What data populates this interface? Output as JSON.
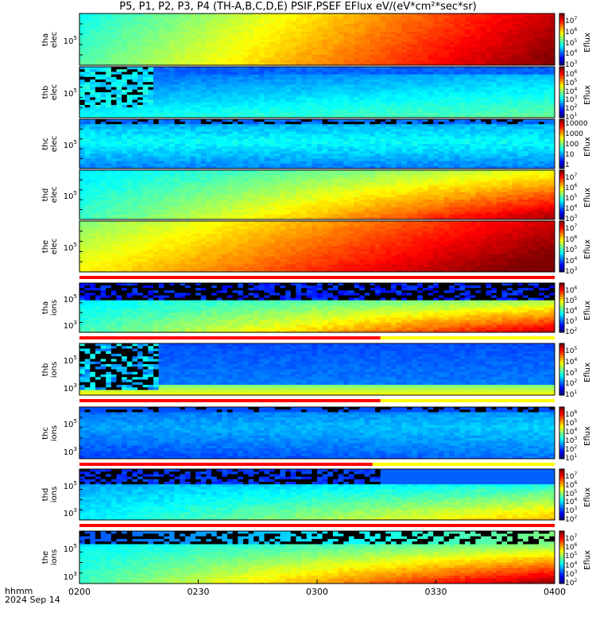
{
  "title": "P5, P1, P2, P3, P4 (TH-A,B,C,D,E) PSIF,PSEF EFlux eV/(eV*cm²*sec*sr)",
  "x_axis": {
    "label_line1": "hhmm",
    "label_line2": "2024 Sep 14",
    "ticks": [
      "0200",
      "0230",
      "0300",
      "0330",
      "0400"
    ]
  },
  "colorbar_label": "Eflux",
  "chart_data": [
    {
      "type": "heatmap",
      "probe": "tha",
      "species": "elec",
      "ylabel": [
        "tha",
        "elec"
      ],
      "ytick": "10^5",
      "cbar_ticks": [
        "10^7",
        "10^6",
        "10^5",
        "10^4",
        "10^3"
      ],
      "pattern": "smooth_rise"
    },
    {
      "type": "heatmap",
      "probe": "thb",
      "species": "elec",
      "ylabel": [
        "thb",
        "elec"
      ],
      "ytick": "10^5",
      "cbar_ticks": [
        "10^6",
        "10^5",
        "10^4",
        "10^3",
        "10^2",
        "10^1"
      ],
      "pattern": "noisy_early"
    },
    {
      "type": "heatmap",
      "probe": "thc",
      "species": "elec",
      "ylabel": [
        "thc",
        "elec"
      ],
      "ytick": "10^5",
      "cbar_ticks": [
        "10000",
        "1000",
        "100",
        "10",
        "1"
      ],
      "pattern": "blue_band"
    },
    {
      "type": "heatmap",
      "probe": "thd",
      "species": "elec",
      "ylabel": [
        "thd",
        "elec"
      ],
      "ytick": "10^5",
      "cbar_ticks": [
        "10^7",
        "10^6",
        "10^5",
        "10^4",
        "10^3"
      ],
      "pattern": "green_rise"
    },
    {
      "type": "heatmap",
      "probe": "the",
      "species": "elec",
      "ylabel": [
        "the",
        "elec"
      ],
      "ytick": "10^5",
      "cbar_ticks": [
        "10^7",
        "10^6",
        "10^5",
        "10^4",
        "10^3"
      ],
      "pattern": "hot"
    },
    {
      "type": "heatmap",
      "probe": "tha",
      "species": "ions",
      "ylabel": [
        "tha",
        "ions"
      ],
      "ytick_top": "10^5",
      "ytick_bot": "10^3",
      "cbar_ticks": [
        "10^6",
        "10^5",
        "10^4",
        "10^3",
        "10^2"
      ],
      "pattern": "ions_a"
    },
    {
      "type": "heatmap",
      "probe": "thb",
      "species": "ions",
      "ylabel": [
        "thb",
        "ions"
      ],
      "ytick_top": "10^5",
      "ytick_bot": "10^3",
      "cbar_ticks": [
        "10^5",
        "10^4",
        "10^3",
        "10^2",
        "10^1"
      ],
      "pattern": "ions_b"
    },
    {
      "type": "heatmap",
      "probe": "thc",
      "species": "ions",
      "ylabel": [
        "thc",
        "ions"
      ],
      "ytick_top": "10^5",
      "ytick_bot": "10^3",
      "cbar_ticks": [
        "10^6",
        "10^5",
        "10^4",
        "10^3",
        "10^2",
        "10^1"
      ],
      "pattern": "ions_c"
    },
    {
      "type": "heatmap",
      "probe": "thd",
      "species": "ions",
      "ylabel": [
        "thd",
        "ions"
      ],
      "ytick_top": "10^5",
      "ytick_bot": "10^3",
      "cbar_ticks": [
        "10^7",
        "10^6",
        "10^5",
        "10^4",
        "10^3",
        "10^2"
      ],
      "pattern": "ions_d"
    },
    {
      "type": "heatmap",
      "probe": "the",
      "species": "ions",
      "ylabel": [
        "the",
        "ions"
      ],
      "ytick_top": "10^5",
      "ytick_bot": "10^3",
      "cbar_ticks": [
        "10^7",
        "10^6",
        "10^5",
        "10^4",
        "10^3",
        "10^2"
      ],
      "pattern": "ions_e"
    }
  ],
  "mode_bars": [
    {
      "after_panel": 4,
      "segments": [
        {
          "from": "0200",
          "to": "0400",
          "color": "#ff0000"
        }
      ]
    },
    {
      "after_panel": 5,
      "segments": [
        {
          "from": "0200",
          "to": "0316",
          "color": "#ff0000"
        },
        {
          "from": "0316",
          "to": "0400",
          "color": "#ffff00"
        }
      ]
    },
    {
      "after_panel": 6,
      "segments": [
        {
          "from": "0200",
          "to": "0316",
          "color": "#ff0000"
        },
        {
          "from": "0316",
          "to": "0400",
          "color": "#ffff00"
        }
      ]
    },
    {
      "after_panel": 7,
      "segments": [
        {
          "from": "0200",
          "to": "0314",
          "color": "#ff0000"
        },
        {
          "from": "0314",
          "to": "0400",
          "color": "#ffff00"
        }
      ]
    },
    {
      "after_panel": 8,
      "segments": [
        {
          "from": "0200",
          "to": "0400",
          "color": "#ff0000"
        }
      ]
    }
  ]
}
